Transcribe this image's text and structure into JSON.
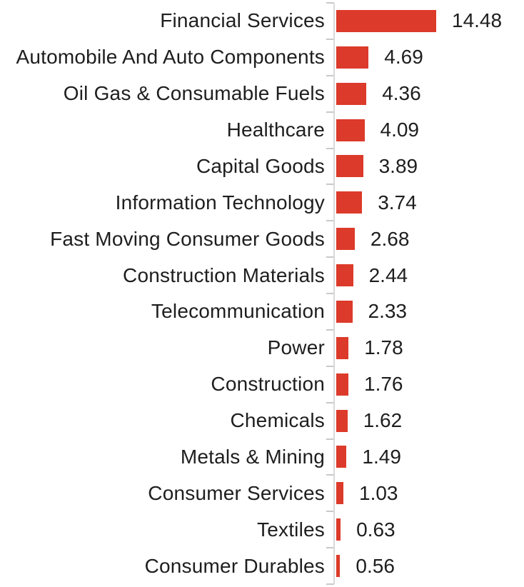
{
  "chart_data": {
    "type": "bar",
    "orientation": "horizontal",
    "title": "",
    "xlabel": "",
    "ylabel": "",
    "grid": false,
    "legend": false,
    "categories": [
      "Financial Services",
      "Automobile And Auto Components",
      "Oil Gas & Consumable Fuels",
      "Healthcare",
      "Capital Goods",
      "Information Technology",
      "Fast Moving Consumer Goods",
      "Construction Materials",
      "Telecommunication",
      "Power",
      "Construction",
      "Chemicals",
      "Metals & Mining",
      "Consumer Services",
      "Textiles",
      "Consumer Durables"
    ],
    "values": [
      14.48,
      4.69,
      4.36,
      4.09,
      3.89,
      3.74,
      2.68,
      2.44,
      2.33,
      1.78,
      1.76,
      1.62,
      1.49,
      1.03,
      0.63,
      0.56
    ],
    "value_labels": [
      "14.48",
      "4.69",
      "4.36",
      "4.09",
      "3.89",
      "3.74",
      "2.68",
      "2.44",
      "2.33",
      "1.78",
      "1.76",
      "1.62",
      "1.49",
      "1.03",
      "0.63",
      "0.56"
    ],
    "colors": {
      "bar": "#dc3a2a",
      "axis": "#d9d9d9",
      "tick": "#c9c9c9",
      "text": "#1e1e1e",
      "background": "#ffffff"
    }
  }
}
